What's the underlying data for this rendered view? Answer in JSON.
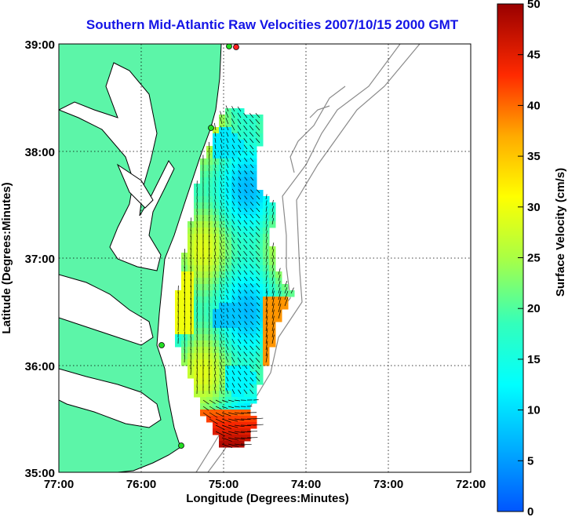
{
  "title": "Southern Mid-Atlantic Raw Velocities 2007/10/15 2000 GMT",
  "x_axis": {
    "label": "Longitude (Degrees:Minutes)",
    "ticks": [
      "77:00",
      "76:00",
      "75:00",
      "74:00",
      "73:00",
      "72:00"
    ]
  },
  "y_axis": {
    "label": "Latitude (Degrees:Minutes)",
    "ticks": [
      "39:00",
      "38:00",
      "37:00",
      "36:00",
      "35:00"
    ]
  },
  "colorbar": {
    "label": "Surface Velocity (cm/s)",
    "ticks": [
      "50",
      "45",
      "40",
      "35",
      "30",
      "25",
      "20",
      "15",
      "10",
      "5",
      "0"
    ],
    "range": [
      0,
      50
    ],
    "colormap": "jet"
  },
  "colors": {
    "land": "#5cf5a8",
    "coastline": "#000000",
    "bathymetry": "#8a8a8a",
    "title": "#1414e6",
    "site_marker": "#22dd22",
    "site_marker_active": "#ff2020"
  },
  "map_extent": {
    "lon": [
      -77,
      -72
    ],
    "lat": [
      35,
      39
    ]
  }
}
